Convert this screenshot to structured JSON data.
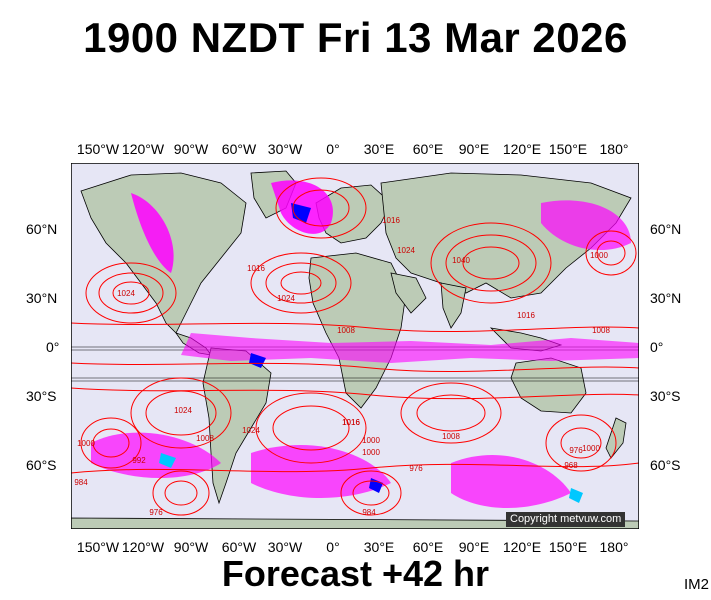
{
  "header": {
    "title": "1900 NZDT Fri 13 Mar 2026"
  },
  "footer": {
    "forecast": "Forecast +42 hr",
    "image_id": "IM2"
  },
  "copyright": "Copyright metvuw.com",
  "axes": {
    "lon_labels": [
      "150°W",
      "120°W",
      "90°W",
      "60°W",
      "30°W",
      "0°",
      "30°E",
      "60°E",
      "90°E",
      "120°E",
      "150°E",
      "180°"
    ],
    "lat_labels": [
      "60°N",
      "30°N",
      "0°",
      "30°S",
      "60°S"
    ]
  },
  "isobar_labels": [
    "1024",
    "1016",
    "1024",
    "1008",
    "1040",
    "1016",
    "1024",
    "1024",
    "1016",
    "1000",
    "1008",
    "1024",
    "1016",
    "1000",
    "1008",
    "976",
    "1000",
    "984",
    "976",
    "992",
    "984",
    "1000",
    "976",
    "968",
    "1000",
    "1016",
    "1008"
  ],
  "colors": {
    "ocean": "#e6e6f5",
    "land": "#bccbb6",
    "isobar": "#ff0000",
    "precip_magenta": "#ff00ff",
    "precip_blue": "#0000ff",
    "precip_cyan": "#00c8ff"
  }
}
